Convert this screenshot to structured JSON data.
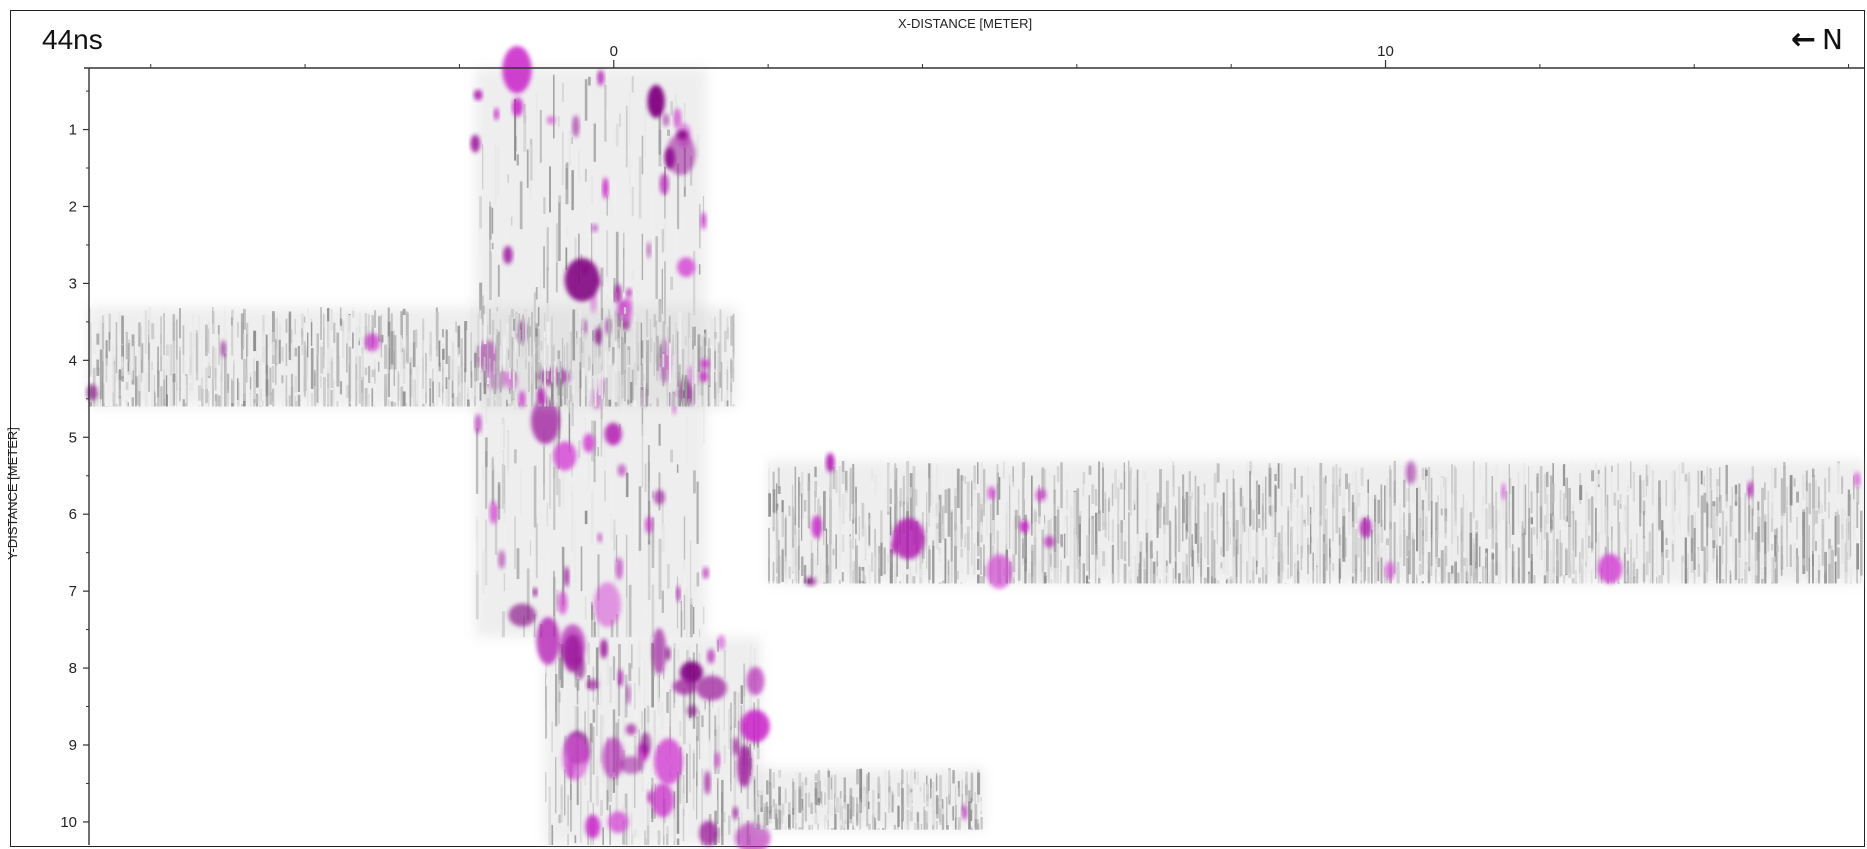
{
  "header": {
    "time_label": "44ns",
    "north_label": "N",
    "north_arrow_icon": "arrow-left-icon"
  },
  "chart_data": {
    "type": "heatmap",
    "title": "",
    "xlabel": "X-DISTANCE [METER]",
    "ylabel": "Y-DISTANCE [METER]",
    "xlim": [
      -6.8,
      16.2
    ],
    "ylim": [
      10.3,
      0.2
    ],
    "y_inverted": true,
    "x_major_ticks": [
      0,
      10
    ],
    "x_minor_ticks": [
      -6,
      -4,
      -2,
      2,
      4,
      6,
      8,
      12,
      14,
      16
    ],
    "y_ticks": [
      1,
      2,
      3,
      4,
      5,
      6,
      7,
      8,
      9,
      10
    ],
    "grid": false,
    "legend": "none",
    "colors": {
      "low": "#ffffff",
      "mid": "#8c8c8c",
      "high": "#c81ec8",
      "peak": "#800080"
    },
    "data_regions": [
      {
        "name": "north-south strip",
        "x": [
          -1.8,
          1.2
        ],
        "y": [
          0.2,
          7.6
        ],
        "intensity": "high"
      },
      {
        "name": "upper-left band",
        "x": [
          -6.8,
          1.6
        ],
        "y": [
          3.3,
          4.6
        ],
        "intensity": "medium"
      },
      {
        "name": "right band",
        "x": [
          2.0,
          16.2
        ],
        "y": [
          5.3,
          6.9
        ],
        "intensity": "medium"
      },
      {
        "name": "lower strip",
        "x": [
          -0.9,
          1.9
        ],
        "y": [
          7.6,
          10.3
        ],
        "intensity": "very high"
      },
      {
        "name": "lower-right patch",
        "x": [
          1.8,
          4.8
        ],
        "y": [
          9.3,
          10.1
        ],
        "intensity": "medium"
      }
    ]
  }
}
